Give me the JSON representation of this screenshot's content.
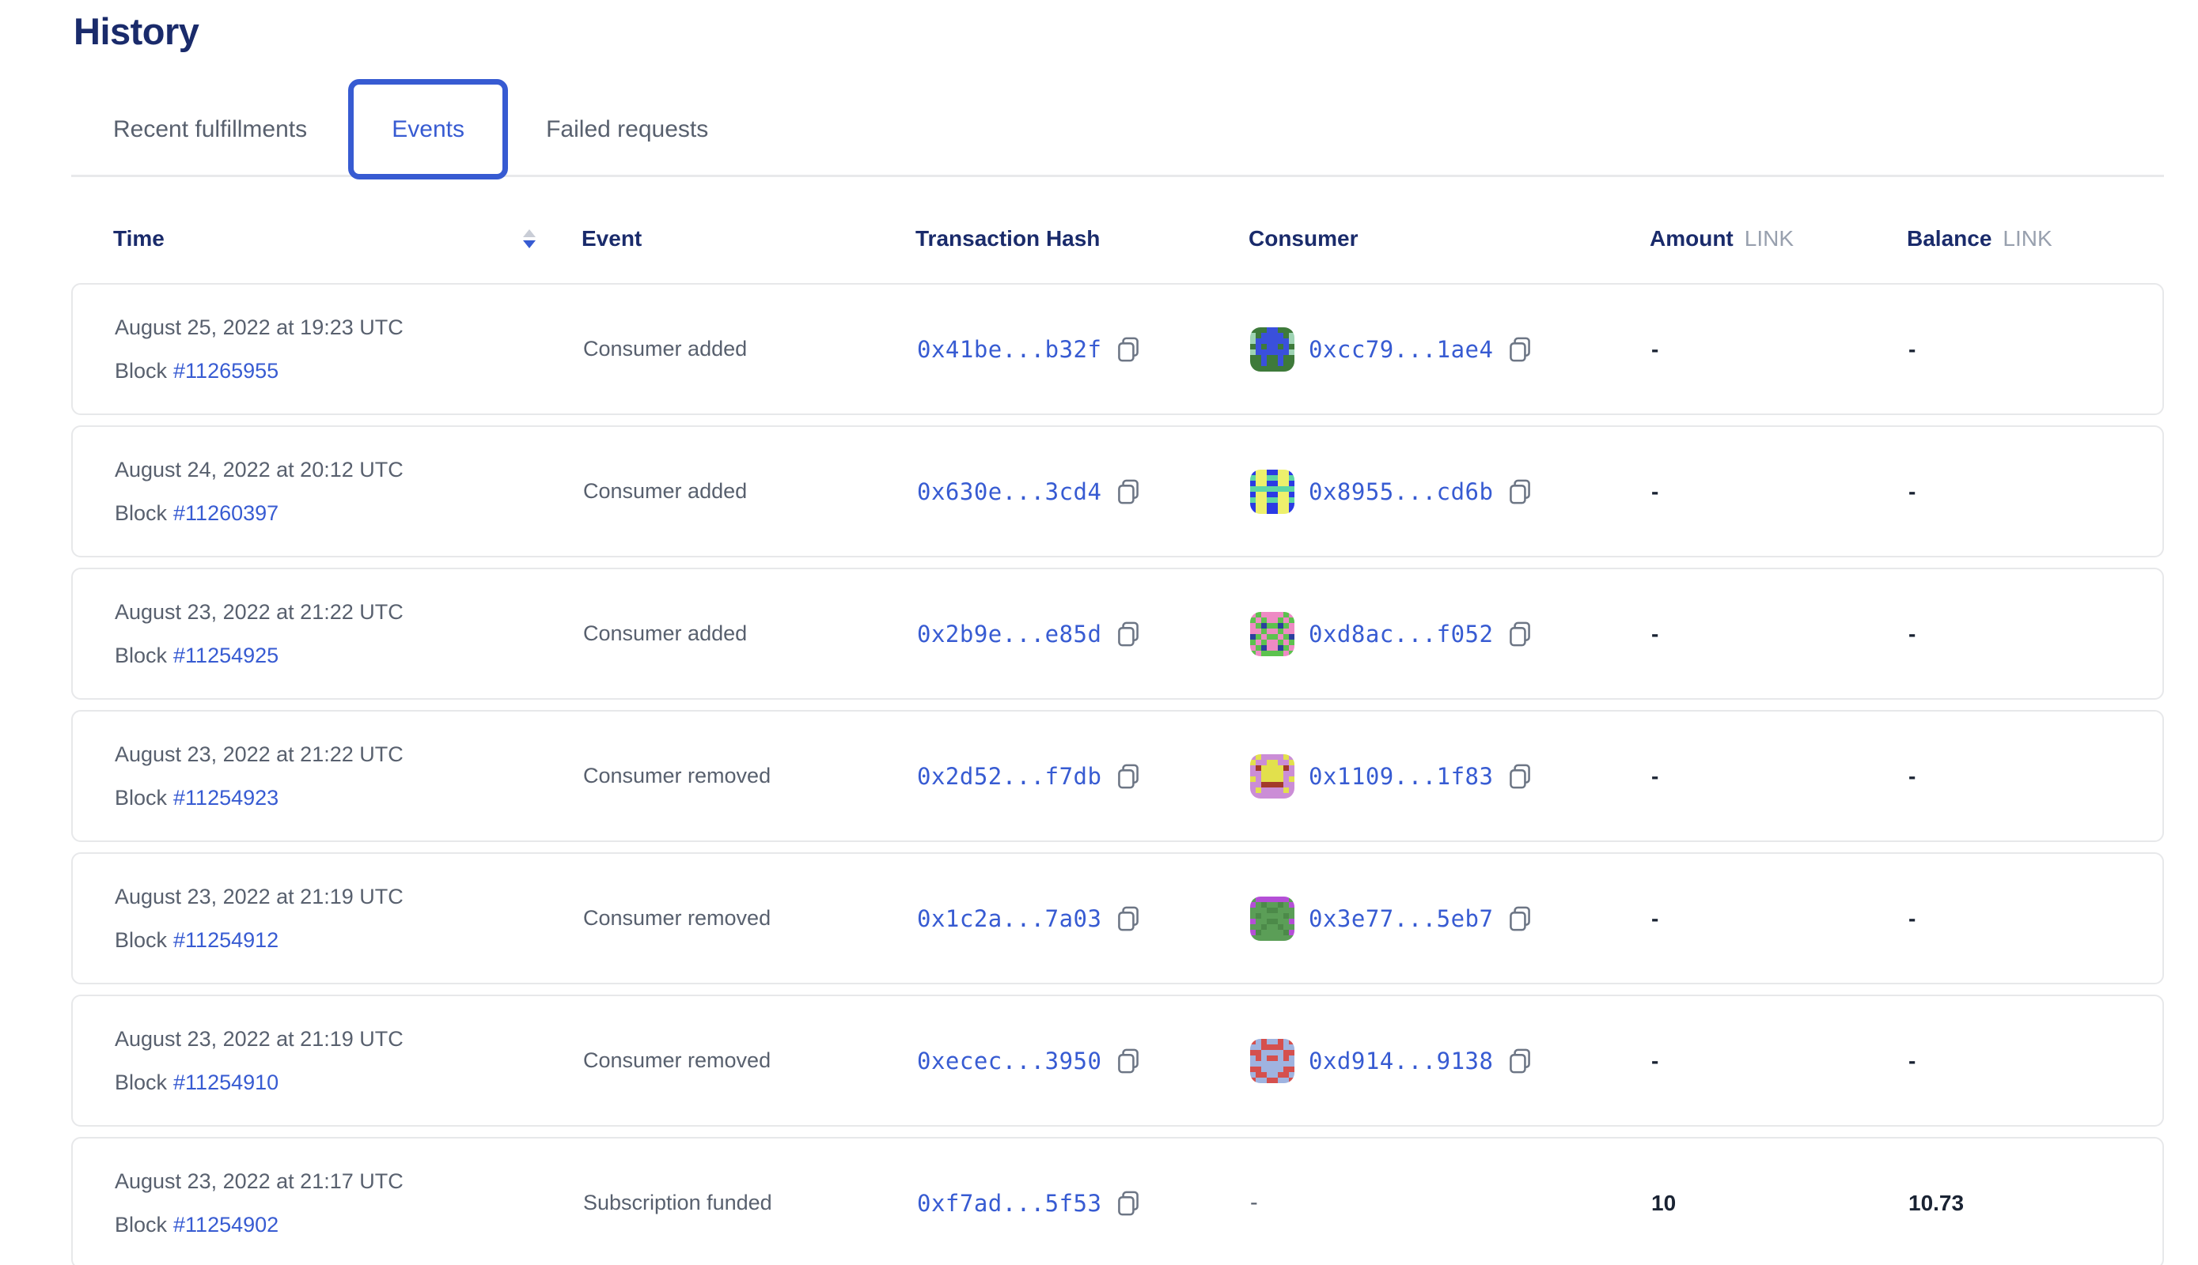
{
  "page": {
    "title": "History"
  },
  "tabs": [
    {
      "label": "Recent fulfillments",
      "active": false
    },
    {
      "label": "Events",
      "active": true
    },
    {
      "label": "Failed requests",
      "active": false
    }
  ],
  "colors": {
    "accent_blue": "#375BD2",
    "heading_navy": "#1A2B6B",
    "body_gray": "#58606E",
    "card_border": "#E7E8EA",
    "unit_gray": "#98A0AE"
  },
  "table": {
    "labels": {
      "block": "Block"
    },
    "columns": {
      "time": "Time",
      "event": "Event",
      "tx_hash": "Transaction Hash",
      "consumer": "Consumer",
      "amount": "Amount",
      "amount_unit": "LINK",
      "balance": "Balance",
      "balance_unit": "LINK"
    },
    "sort": {
      "column": "Time",
      "direction": "descending"
    },
    "rows": [
      {
        "date": "August 25, 2022 at 19:23 UTC",
        "block_number": "#11265955",
        "event": "Consumer added",
        "tx_hash": "0x41be...b32f",
        "consumer": {
          "display": "0xcc79...1ae4",
          "has_icon": true,
          "icon": {
            "colors": [
              "#3E7A3A",
              "#3A50DC",
              "#9FD4B4"
            ],
            "grid": [
              [
                0,
                0,
                0,
                1,
                1,
                0,
                0,
                0
              ],
              [
                2,
                0,
                1,
                1,
                1,
                1,
                0,
                2
              ],
              [
                2,
                1,
                1,
                1,
                1,
                1,
                1,
                2
              ],
              [
                0,
                1,
                0,
                1,
                1,
                0,
                1,
                0
              ],
              [
                2,
                1,
                1,
                1,
                1,
                1,
                1,
                2
              ],
              [
                0,
                0,
                1,
                0,
                0,
                1,
                0,
                0
              ],
              [
                0,
                0,
                1,
                0,
                0,
                1,
                0,
                0
              ],
              [
                0,
                0,
                0,
                0,
                0,
                0,
                0,
                0
              ]
            ]
          }
        },
        "amount": "-",
        "balance": "-"
      },
      {
        "date": "August 24, 2022 at 20:12 UTC",
        "block_number": "#11260397",
        "event": "Consumer added",
        "tx_hash": "0x630e...3cd4",
        "consumer": {
          "display": "0x8955...cd6b",
          "has_icon": true,
          "icon": {
            "colors": [
              "#2B3BE4",
              "#EDF06C",
              "#5ED6A4"
            ],
            "grid": [
              [
                0,
                1,
                1,
                0,
                0,
                1,
                1,
                0
              ],
              [
                2,
                1,
                1,
                2,
                2,
                1,
                1,
                2
              ],
              [
                0,
                1,
                1,
                0,
                0,
                1,
                1,
                0
              ],
              [
                2,
                2,
                2,
                2,
                2,
                2,
                2,
                2
              ],
              [
                0,
                1,
                1,
                0,
                0,
                1,
                1,
                0
              ],
              [
                2,
                1,
                1,
                2,
                2,
                1,
                1,
                2
              ],
              [
                0,
                1,
                1,
                0,
                0,
                1,
                1,
                0
              ],
              [
                0,
                1,
                1,
                0,
                0,
                1,
                1,
                0
              ]
            ]
          }
        },
        "amount": "-",
        "balance": "-"
      },
      {
        "date": "August 23, 2022 at 21:22 UTC",
        "block_number": "#11254925",
        "event": "Consumer added",
        "tx_hash": "0x2b9e...e85d",
        "consumer": {
          "display": "0xd8ac...f052",
          "has_icon": true,
          "icon": {
            "colors": [
              "#5CC24E",
              "#EE8AC4",
              "#2B3F9E"
            ],
            "grid": [
              [
                1,
                0,
                1,
                1,
                1,
                1,
                0,
                1
              ],
              [
                0,
                1,
                0,
                1,
                1,
                0,
                1,
                0
              ],
              [
                1,
                0,
                2,
                0,
                0,
                2,
                0,
                1
              ],
              [
                1,
                1,
                0,
                1,
                1,
                0,
                1,
                1
              ],
              [
                2,
                0,
                1,
                0,
                0,
                1,
                0,
                2
              ],
              [
                0,
                1,
                0,
                1,
                1,
                0,
                1,
                0
              ],
              [
                1,
                0,
                2,
                1,
                1,
                2,
                0,
                1
              ],
              [
                0,
                1,
                0,
                0,
                0,
                0,
                1,
                0
              ]
            ]
          }
        },
        "amount": "-",
        "balance": "-"
      },
      {
        "date": "August 23, 2022 at 21:22 UTC",
        "block_number": "#11254923",
        "event": "Consumer removed",
        "tx_hash": "0x2d52...f7db",
        "consumer": {
          "display": "0x1109...1f83",
          "has_icon": true,
          "icon": {
            "colors": [
              "#CB8DD6",
              "#E2E04C",
              "#A33A2A"
            ],
            "grid": [
              [
                0,
                1,
                0,
                0,
                0,
                0,
                1,
                0
              ],
              [
                1,
                0,
                0,
                1,
                1,
                0,
                0,
                1
              ],
              [
                0,
                2,
                1,
                1,
                1,
                1,
                2,
                0
              ],
              [
                0,
                0,
                1,
                1,
                1,
                1,
                0,
                0
              ],
              [
                1,
                0,
                1,
                1,
                1,
                1,
                0,
                1
              ],
              [
                0,
                0,
                2,
                2,
                2,
                2,
                0,
                0
              ],
              [
                0,
                1,
                0,
                0,
                0,
                0,
                1,
                0
              ],
              [
                0,
                0,
                0,
                0,
                0,
                0,
                0,
                0
              ]
            ]
          }
        },
        "amount": "-",
        "balance": "-"
      },
      {
        "date": "August 23, 2022 at 21:19 UTC",
        "block_number": "#11254912",
        "event": "Consumer removed",
        "tx_hash": "0x1c2a...7a03",
        "consumer": {
          "display": "0x3e77...5eb7",
          "has_icon": true,
          "icon": {
            "colors": [
              "#5B9E57",
              "#4C8A49",
              "#B44FD6"
            ],
            "grid": [
              [
                0,
                2,
                2,
                2,
                2,
                2,
                2,
                0
              ],
              [
                2,
                0,
                1,
                0,
                0,
                1,
                0,
                2
              ],
              [
                0,
                0,
                0,
                1,
                1,
                0,
                0,
                0
              ],
              [
                0,
                1,
                0,
                0,
                0,
                0,
                1,
                0
              ],
              [
                2,
                0,
                0,
                1,
                1,
                0,
                0,
                2
              ],
              [
                0,
                0,
                1,
                0,
                0,
                1,
                0,
                0
              ],
              [
                2,
                1,
                0,
                0,
                0,
                0,
                1,
                2
              ],
              [
                0,
                0,
                0,
                0,
                0,
                0,
                0,
                0
              ]
            ]
          }
        },
        "amount": "-",
        "balance": "-"
      },
      {
        "date": "August 23, 2022 at 21:19 UTC",
        "block_number": "#11254910",
        "event": "Consumer removed",
        "tx_hash": "0xecec...3950",
        "consumer": {
          "display": "0xd914...9138",
          "has_icon": true,
          "icon": {
            "colors": [
              "#D5504E",
              "#9FB3E0",
              "#8DA3D8"
            ],
            "grid": [
              [
                0,
                1,
                0,
                1,
                1,
                0,
                1,
                0
              ],
              [
                1,
                1,
                0,
                0,
                0,
                0,
                1,
                1
              ],
              [
                0,
                0,
                1,
                1,
                1,
                1,
                0,
                0
              ],
              [
                1,
                0,
                1,
                0,
                0,
                1,
                0,
                1
              ],
              [
                1,
                1,
                1,
                1,
                1,
                1,
                1,
                1
              ],
              [
                0,
                0,
                1,
                1,
                1,
                1,
                0,
                0
              ],
              [
                1,
                0,
                0,
                1,
                1,
                0,
                0,
                1
              ],
              [
                0,
                1,
                1,
                0,
                0,
                1,
                1,
                0
              ]
            ]
          }
        },
        "amount": "-",
        "balance": "-"
      },
      {
        "date": "August 23, 2022 at 21:17 UTC",
        "block_number": "#11254902",
        "event": "Subscription funded",
        "tx_hash": "0xf7ad...5f53",
        "consumer": {
          "display": "-",
          "has_icon": false
        },
        "amount": "10",
        "balance": "10.73"
      }
    ]
  }
}
